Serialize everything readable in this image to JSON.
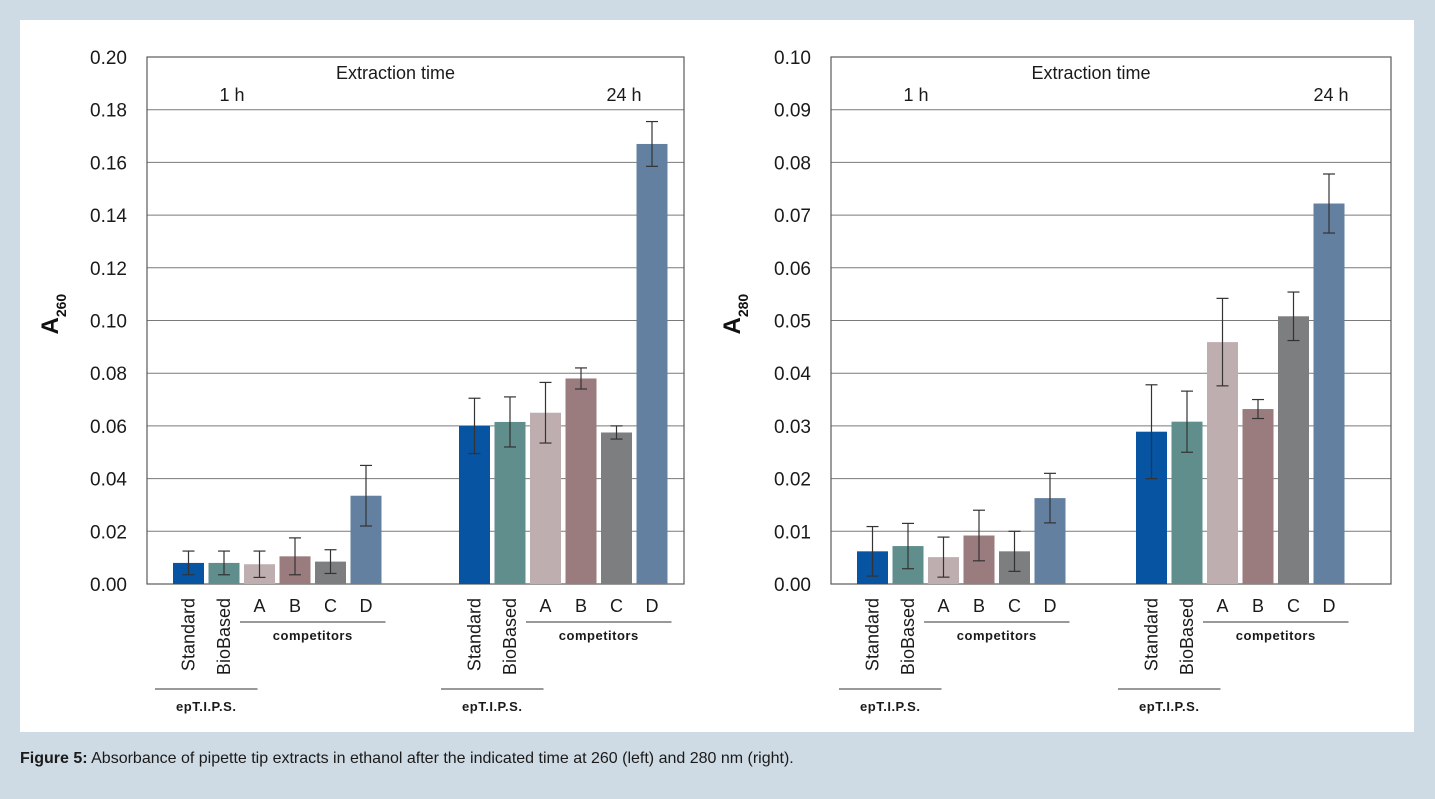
{
  "caption": {
    "label": "Figure 5:",
    "text": "Absorbance of pipette tip extracts in ethanol after the indicated time at 260 (left) and 280 nm (right)."
  },
  "colors": {
    "Standard": "#0654a2",
    "BioBased": "#5f8e8c",
    "A": "#bfaeb0",
    "B": "#9a7c7f",
    "C": "#7d7e80",
    "D": "#6380a1",
    "page_background": "#cfdbe4"
  },
  "chart_data": [
    {
      "type": "bar",
      "title": "Extraction time",
      "ylabel": "A",
      "ylabel_subscript": "260",
      "ylim": [
        0,
        0.2
      ],
      "yticks": [
        "0.00",
        "0.02",
        "0.04",
        "0.06",
        "0.08",
        "0.10",
        "0.12",
        "0.14",
        "0.16",
        "0.18",
        "0.20"
      ],
      "grid": true,
      "categories": [
        "Standard",
        "BioBased",
        "A",
        "B",
        "C",
        "D"
      ],
      "category_groups": [
        {
          "label": "epT.I.P.S.",
          "members": [
            "Standard",
            "BioBased"
          ]
        },
        {
          "label": "competitors",
          "members": [
            "A",
            "B",
            "C",
            "D"
          ]
        }
      ],
      "groups": [
        {
          "label": "1 h",
          "values": [
            0.008,
            0.008,
            0.0075,
            0.0105,
            0.0085,
            0.0335
          ],
          "errors": [
            0.0045,
            0.0045,
            0.005,
            0.007,
            0.0045,
            0.0115
          ]
        },
        {
          "label": "24 h",
          "values": [
            0.06,
            0.0615,
            0.065,
            0.078,
            0.0575,
            0.167
          ],
          "errors": [
            0.0105,
            0.0095,
            0.0115,
            0.004,
            0.0025,
            0.0085
          ]
        }
      ]
    },
    {
      "type": "bar",
      "title": "Extraction time",
      "ylabel": "A",
      "ylabel_subscript": "280",
      "ylim": [
        0,
        0.1
      ],
      "yticks": [
        "0.00",
        "0.01",
        "0.02",
        "0.03",
        "0.04",
        "0.05",
        "0.06",
        "0.07",
        "0.08",
        "0.09",
        "0.10"
      ],
      "grid": true,
      "categories": [
        "Standard",
        "BioBased",
        "A",
        "B",
        "C",
        "D"
      ],
      "category_groups": [
        {
          "label": "epT.I.P.S.",
          "members": [
            "Standard",
            "BioBased"
          ]
        },
        {
          "label": "competitors",
          "members": [
            "A",
            "B",
            "C",
            "D"
          ]
        }
      ],
      "groups": [
        {
          "label": "1 h",
          "values": [
            0.0062,
            0.0072,
            0.0051,
            0.0092,
            0.0062,
            0.0163
          ],
          "errors": [
            0.0047,
            0.0043,
            0.0038,
            0.0048,
            0.0038,
            0.0047
          ]
        },
        {
          "label": "24 h",
          "values": [
            0.0289,
            0.0308,
            0.0459,
            0.0332,
            0.0508,
            0.0722
          ],
          "errors": [
            0.0089,
            0.0058,
            0.0083,
            0.0018,
            0.0046,
            0.0056
          ]
        }
      ]
    }
  ]
}
